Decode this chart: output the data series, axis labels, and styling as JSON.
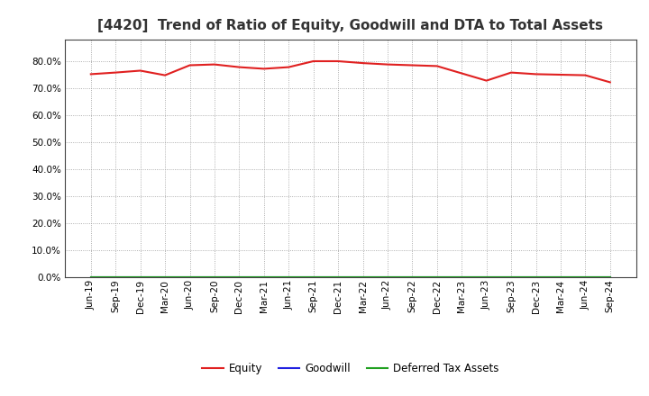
{
  "title": "[4420]  Trend of Ratio of Equity, Goodwill and DTA to Total Assets",
  "x_labels": [
    "Jun-19",
    "Sep-19",
    "Dec-19",
    "Mar-20",
    "Jun-20",
    "Sep-20",
    "Dec-20",
    "Mar-21",
    "Jun-21",
    "Sep-21",
    "Dec-21",
    "Mar-22",
    "Jun-22",
    "Sep-22",
    "Dec-22",
    "Mar-23",
    "Jun-23",
    "Sep-23",
    "Dec-23",
    "Mar-24",
    "Jun-24",
    "Sep-24"
  ],
  "equity": [
    75.2,
    75.8,
    76.5,
    74.8,
    78.5,
    78.8,
    77.8,
    77.2,
    77.8,
    80.0,
    80.0,
    79.3,
    78.8,
    78.5,
    78.2,
    75.5,
    72.8,
    75.8,
    75.2,
    75.0,
    74.8,
    72.2
  ],
  "goodwill": [
    0.0,
    0.0,
    0.0,
    0.0,
    0.0,
    0.0,
    0.0,
    0.0,
    0.0,
    0.0,
    0.0,
    0.0,
    0.0,
    0.0,
    0.0,
    0.0,
    0.0,
    0.0,
    0.0,
    0.0,
    0.0,
    0.0
  ],
  "dta": [
    0.0,
    0.0,
    0.0,
    0.0,
    0.0,
    0.0,
    0.0,
    0.0,
    0.0,
    0.0,
    0.0,
    0.0,
    0.0,
    0.0,
    0.0,
    0.0,
    0.0,
    0.0,
    0.0,
    0.0,
    0.0,
    0.0
  ],
  "equity_color": "#e02020",
  "goodwill_color": "#2020e0",
  "dta_color": "#20a020",
  "background_color": "#ffffff",
  "plot_bg_color": "#ffffff",
  "grid_color": "#999999",
  "ylim": [
    0.0,
    88.0
  ],
  "yticks": [
    0.0,
    10.0,
    20.0,
    30.0,
    40.0,
    50.0,
    60.0,
    70.0,
    80.0
  ],
  "title_fontsize": 11,
  "tick_fontsize": 7.5,
  "legend_labels": [
    "Equity",
    "Goodwill",
    "Deferred Tax Assets"
  ],
  "legend_fontsize": 8.5
}
